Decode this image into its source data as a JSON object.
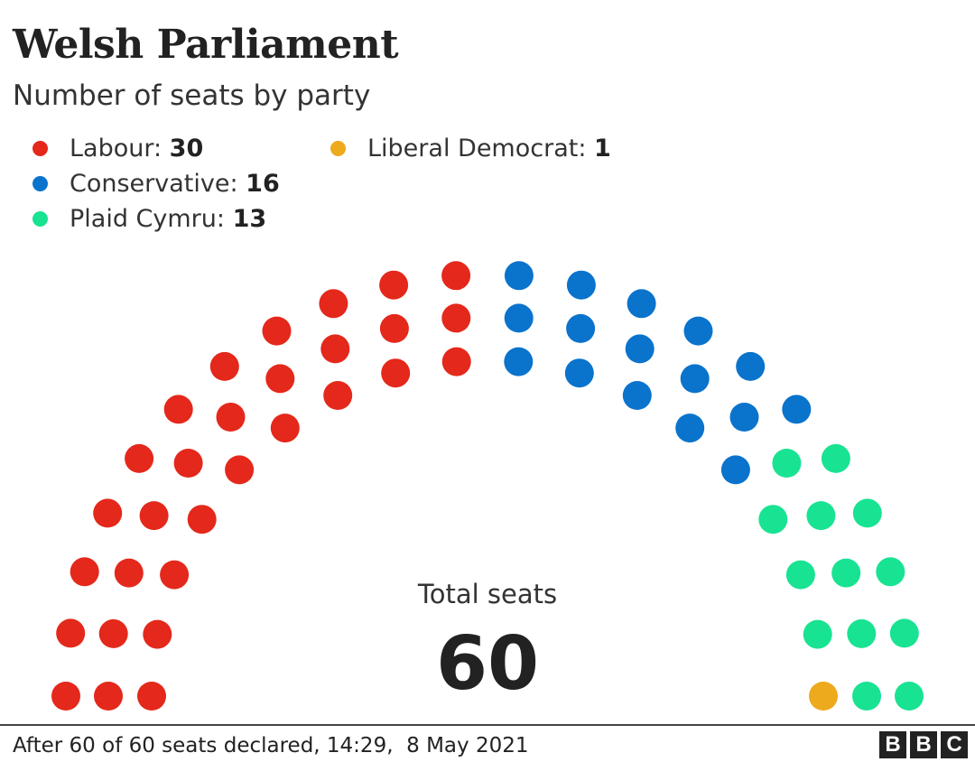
{
  "title": "Welsh Parliament",
  "subtitle": "Number of seats by party",
  "legend": [
    {
      "label": "Labour: ",
      "value": "30",
      "color": "#e4281b"
    },
    {
      "label": "Conservative: ",
      "value": "16",
      "color": "#0a73cc"
    },
    {
      "label": "Plaid Cymru: ",
      "value": "13",
      "color": "#18e392"
    },
    {
      "label": "Liberal Democrat: ",
      "value": "1",
      "color": "#ecaa1c"
    }
  ],
  "total": {
    "label": "Total seats",
    "value": "60"
  },
  "footer": {
    "text": "After 60 of 60 seats declared, 14:29,  8 May 2021"
  },
  "logo": {
    "letters": [
      "B",
      "B",
      "C"
    ]
  },
  "chart_data": {
    "type": "parliament",
    "total": 60,
    "series": [
      {
        "name": "Labour",
        "value": 30,
        "color": "#e4281b"
      },
      {
        "name": "Conservative",
        "value": 16,
        "color": "#0a73cc"
      },
      {
        "name": "Plaid Cymru",
        "value": 13,
        "color": "#18e392"
      },
      {
        "name": "Liberal Democrat",
        "value": 1,
        "color": "#ecaa1c"
      }
    ],
    "seat_order_left_to_right": [
      "Labour",
      "Conservative",
      "Plaid Cymru",
      "Liberal Democrat"
    ],
    "rows": 3,
    "legend_position": "top-left"
  }
}
